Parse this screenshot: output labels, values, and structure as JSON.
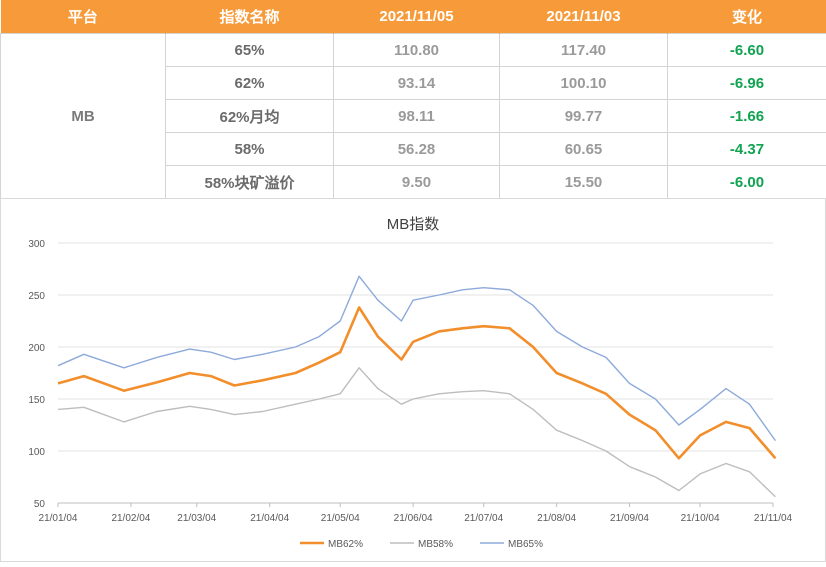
{
  "table": {
    "headers": [
      "平台",
      "指数名称",
      "2021/11/05",
      "2021/11/03",
      "变化"
    ],
    "platform": "MB",
    "rows": [
      {
        "name": "65%",
        "v1": "110.80",
        "v2": "117.40",
        "change": "-6.60"
      },
      {
        "name": "62%",
        "v1": "93.14",
        "v2": "100.10",
        "change": "-6.96"
      },
      {
        "name": "62%月均",
        "v1": "98.11",
        "v2": "99.77",
        "change": "-1.66"
      },
      {
        "name": "58%",
        "v1": "56.28",
        "v2": "60.65",
        "change": "-4.37"
      },
      {
        "name": "58%块矿溢价",
        "v1": "9.50",
        "v2": "15.50",
        "change": "-6.00"
      }
    ]
  },
  "chart_data": {
    "type": "line",
    "title": "MB指数",
    "ylim": [
      50,
      300
    ],
    "yticks": [
      50,
      100,
      150,
      200,
      250,
      300
    ],
    "xticks": [
      "21/01/04",
      "21/02/04",
      "21/03/04",
      "21/04/04",
      "21/05/04",
      "21/06/04",
      "21/07/04",
      "21/08/04",
      "21/09/04",
      "21/10/04",
      "21/11/04"
    ],
    "legend_position": "bottom",
    "grid": true,
    "x": [
      "21/01/04",
      "21/01/15",
      "21/02/01",
      "21/02/15",
      "21/03/01",
      "21/03/10",
      "21/03/20",
      "21/04/01",
      "21/04/15",
      "21/04/25",
      "21/05/04",
      "21/05/12",
      "21/05/20",
      "21/05/30",
      "21/06/04",
      "21/06/15",
      "21/06/25",
      "21/07/04",
      "21/07/15",
      "21/07/25",
      "21/08/04",
      "21/08/15",
      "21/08/25",
      "21/09/04",
      "21/09/15",
      "21/09/25",
      "21/10/04",
      "21/10/15",
      "21/10/25",
      "21/11/05"
    ],
    "series": [
      {
        "name": "MB62%",
        "color": "#f28e2b",
        "values": [
          165,
          172,
          158,
          166,
          175,
          172,
          163,
          168,
          175,
          185,
          195,
          238,
          210,
          188,
          205,
          215,
          218,
          220,
          218,
          200,
          175,
          165,
          155,
          135,
          120,
          93,
          115,
          128,
          122,
          93
        ]
      },
      {
        "name": "MB58%",
        "color": "#bdbdbd",
        "values": [
          140,
          142,
          128,
          138,
          143,
          140,
          135,
          138,
          145,
          150,
          155,
          180,
          160,
          145,
          150,
          155,
          157,
          158,
          155,
          140,
          120,
          110,
          100,
          85,
          75,
          62,
          78,
          88,
          80,
          56
        ]
      },
      {
        "name": "MB65%",
        "color": "#8eaadb",
        "values": [
          182,
          193,
          180,
          190,
          198,
          195,
          188,
          193,
          200,
          210,
          225,
          268,
          245,
          225,
          245,
          250,
          255,
          257,
          255,
          240,
          215,
          200,
          190,
          165,
          150,
          125,
          140,
          160,
          145,
          110
        ]
      }
    ]
  }
}
